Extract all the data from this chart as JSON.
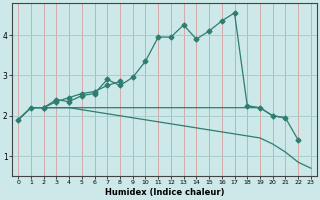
{
  "xlabel": "Humidex (Indice chaleur)",
  "x": [
    0,
    1,
    2,
    3,
    4,
    5,
    6,
    7,
    8,
    9,
    10,
    11,
    12,
    13,
    14,
    15,
    16,
    17,
    18,
    19,
    20,
    21,
    22,
    23
  ],
  "line1": [
    1.9,
    2.2,
    2.2,
    2.4,
    2.35,
    2.5,
    2.55,
    2.9,
    2.75,
    2.95,
    3.35,
    3.95,
    3.95,
    4.25,
    3.9,
    4.1,
    4.35,
    4.55,
    2.25,
    2.2,
    2.0,
    1.95,
    1.4,
    null
  ],
  "line2": [
    null,
    null,
    2.2,
    2.35,
    2.45,
    2.55,
    2.6,
    2.75,
    2.85,
    null,
    null,
    null,
    null,
    null,
    null,
    null,
    null,
    null,
    null,
    null,
    null,
    null,
    null,
    null
  ],
  "line3": [
    1.9,
    2.2,
    2.2,
    2.2,
    2.2,
    2.2,
    2.2,
    2.2,
    2.2,
    2.2,
    2.2,
    2.2,
    2.2,
    2.2,
    2.2,
    2.2,
    2.2,
    2.2,
    2.2,
    2.2,
    2.0,
    1.95,
    null,
    null
  ],
  "line4": [
    1.9,
    2.2,
    2.2,
    2.2,
    2.2,
    2.15,
    2.1,
    2.05,
    2.0,
    1.95,
    1.9,
    1.85,
    1.8,
    1.75,
    1.7,
    1.65,
    1.6,
    1.55,
    1.5,
    1.45,
    1.3,
    1.1,
    0.85,
    0.7
  ],
  "ylim": [
    0.5,
    4.8
  ],
  "yticks": [
    1,
    2,
    3,
    4
  ],
  "xticks": [
    0,
    1,
    2,
    3,
    4,
    5,
    6,
    7,
    8,
    9,
    10,
    11,
    12,
    13,
    14,
    15,
    16,
    17,
    18,
    19,
    20,
    21,
    22,
    23
  ],
  "line_color": "#2e7d6e",
  "bg_color": "#cce8e8",
  "hgrid_color": "#aacccc",
  "vgrid_color": "#d4aaaa"
}
